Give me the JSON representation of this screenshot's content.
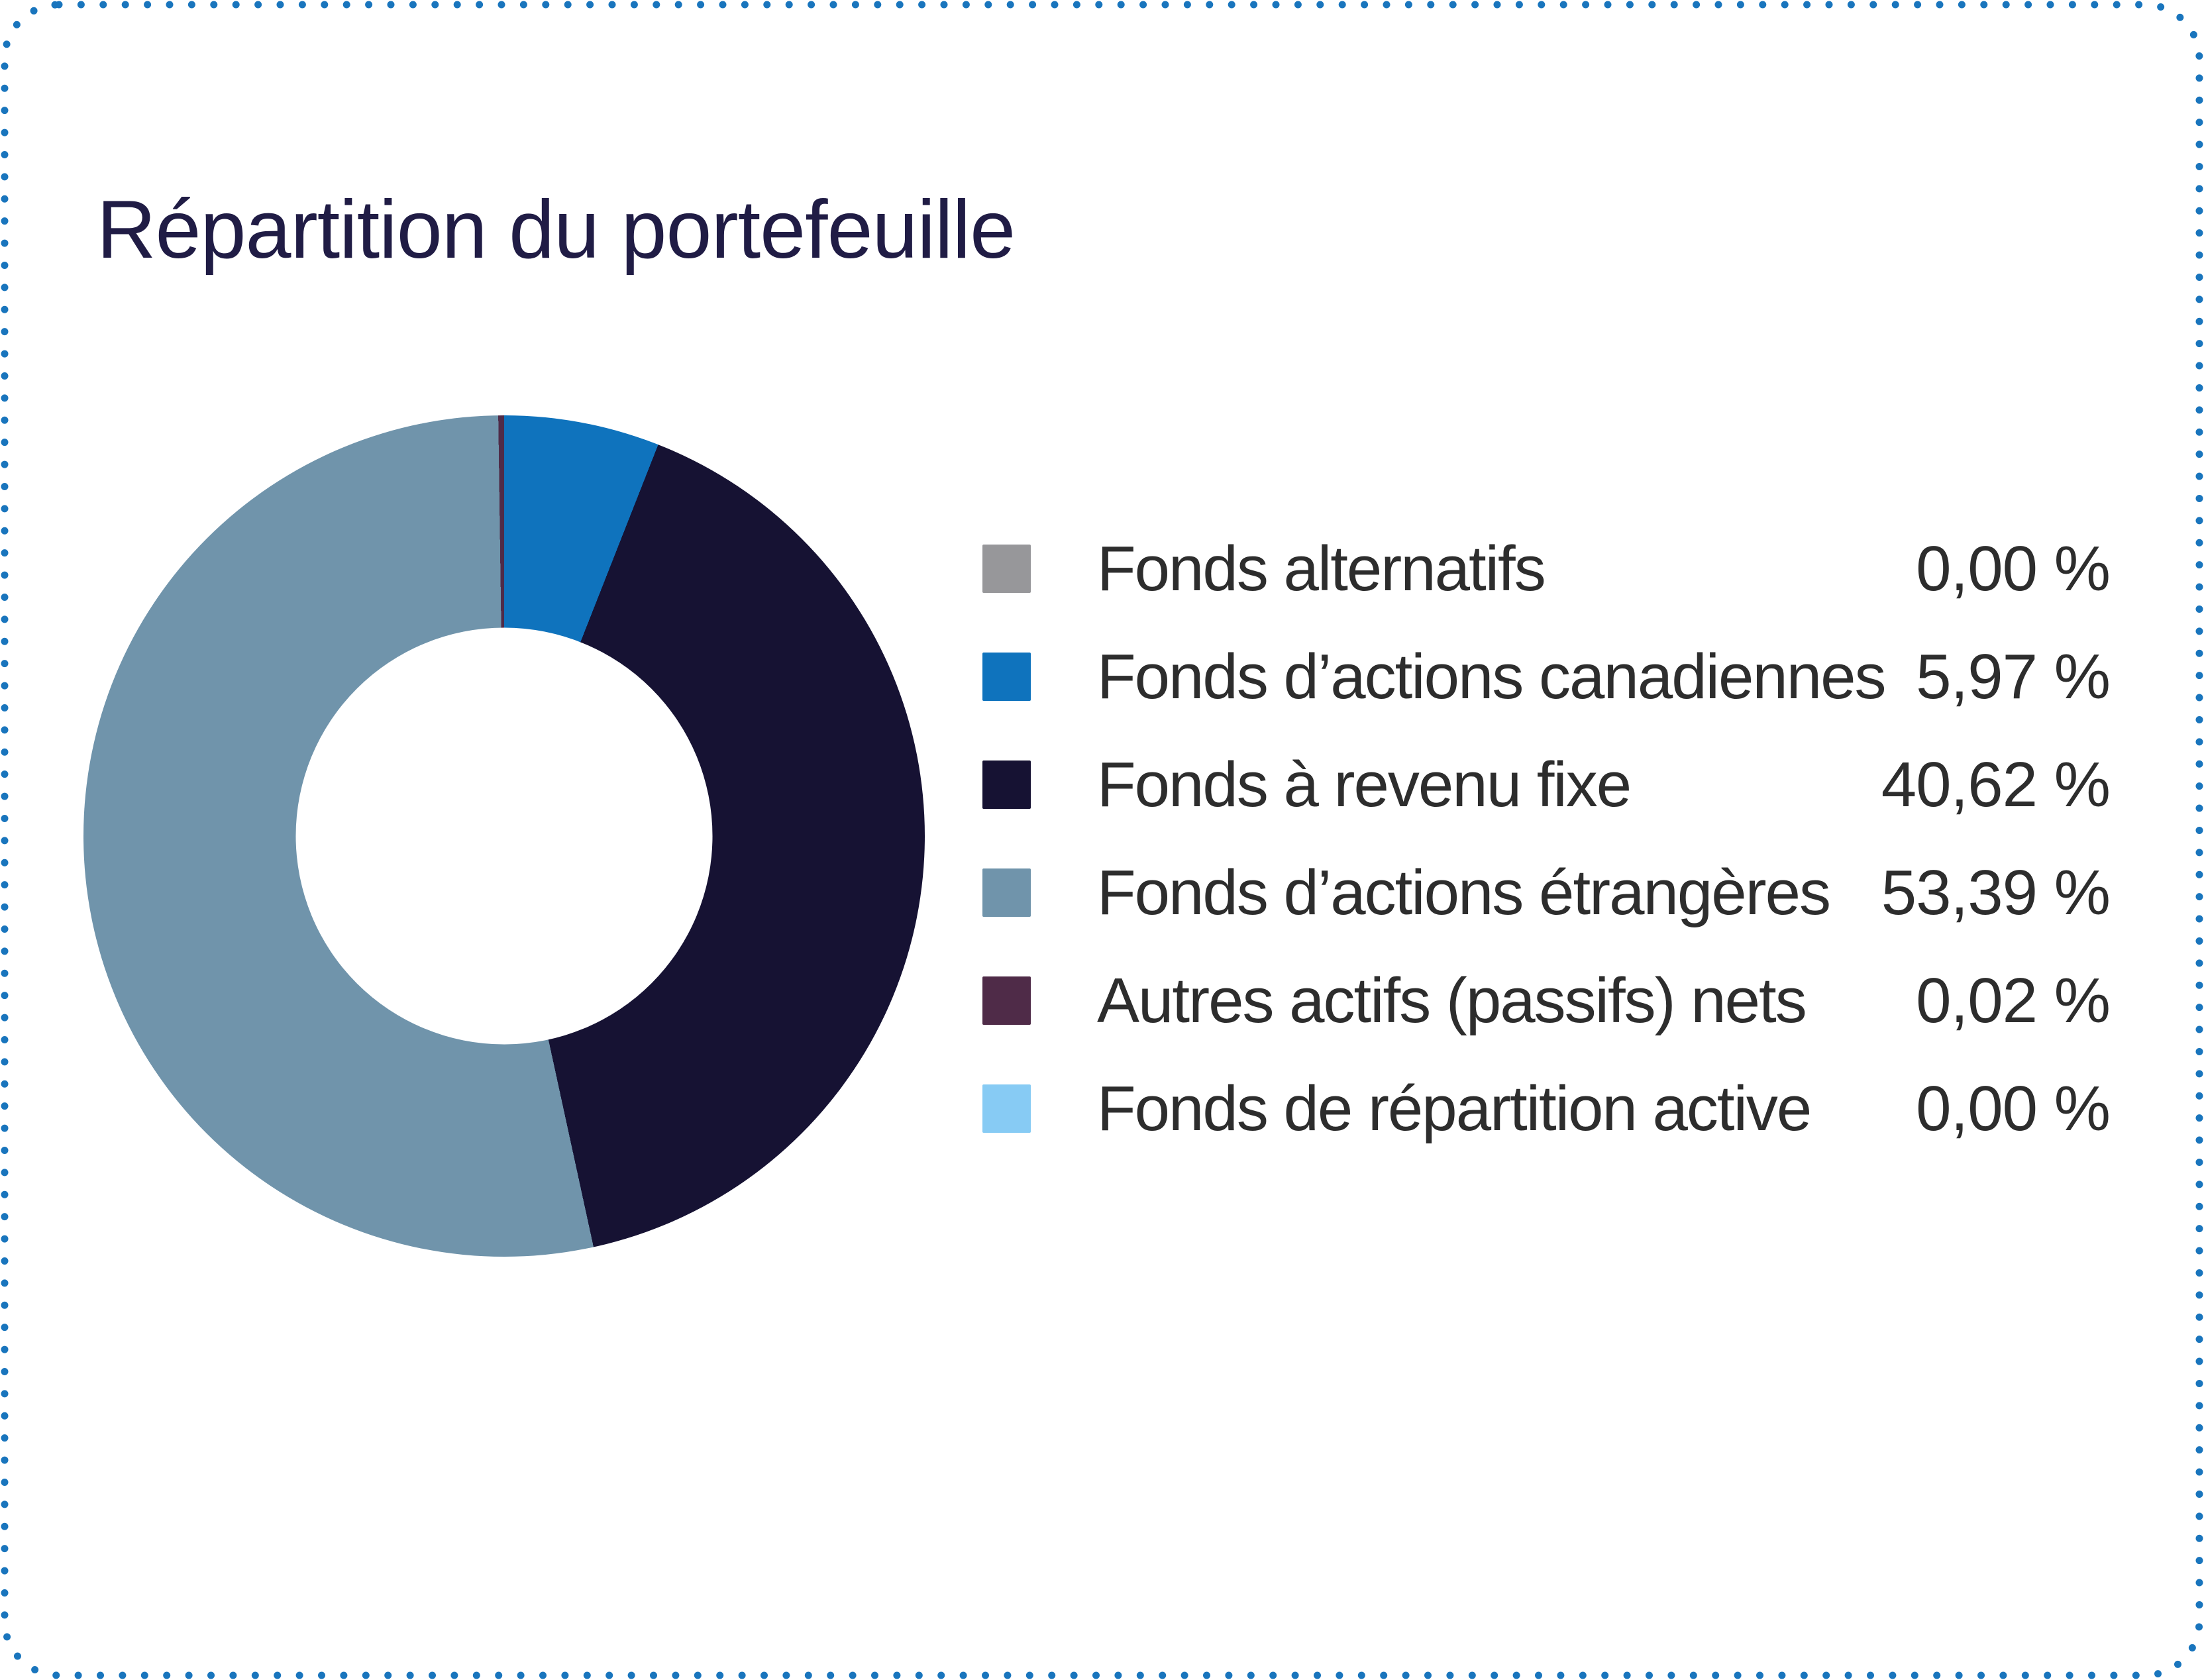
{
  "card": {
    "background": "#ffffff",
    "border_color": "#1975bd"
  },
  "title": "Répartition du portefeuille",
  "colors": {
    "title_text": "#201c45",
    "legend_text": "#2d2d2d"
  },
  "chart_data": {
    "type": "pie",
    "subtype": "donut",
    "title": "Répartition du portefeuille",
    "unit": "%",
    "legend_position": "right",
    "donut_hole_ratio": 0.495,
    "start_angle_deg": 0,
    "direction": "clockwise",
    "segments": [
      {
        "label": "Fonds alternatifs",
        "value": 0.0,
        "display": "0,00 %",
        "color": "#97979a"
      },
      {
        "label": "Fonds d’actions canadiennes",
        "value": 5.97,
        "display": "5,97 %",
        "color": "#0f73bd"
      },
      {
        "label": "Fonds à revenu fixe",
        "value": 40.62,
        "display": "40,62 %",
        "color": "#161233"
      },
      {
        "label": "Fonds d’actions étrangères",
        "value": 53.39,
        "display": "53,39 %",
        "color": "#7094ab"
      },
      {
        "label": "Autres actifs (passifs) nets",
        "value": 0.02,
        "display": "0,02 %",
        "color": "#4f2b48"
      },
      {
        "label": "Fonds de répartition active",
        "value": 0.0,
        "display": "0,00 %",
        "color": "#87cbf4"
      }
    ]
  }
}
